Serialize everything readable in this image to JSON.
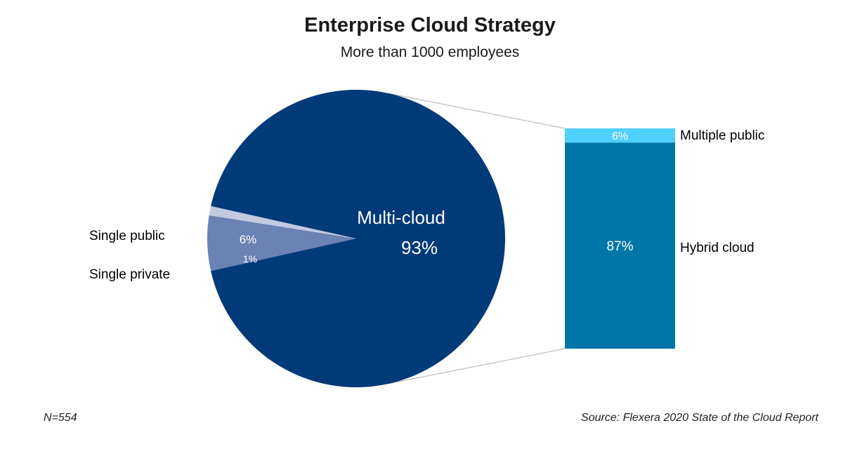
{
  "chart_data": {
    "type": "pie",
    "title": "Enterprise Cloud Strategy",
    "subtitle": "More than 1000 employees",
    "slices": [
      {
        "label": "Multi-cloud",
        "value": 93,
        "value_label": "93%",
        "color": "#003a78"
      },
      {
        "label": "Single public",
        "value": 6,
        "value_label": "6%",
        "color": "#6b82b5"
      },
      {
        "label": "Single private",
        "value": 1,
        "value_label": "1%",
        "color": "#c3cadf"
      }
    ],
    "breakdown": {
      "of": "Multi-cloud",
      "segments": [
        {
          "label": "Multiple public",
          "value": 6,
          "value_label": "6%",
          "color": "#4fd0ff"
        },
        {
          "label": "Hybrid cloud",
          "value": 87,
          "value_label": "87%",
          "color": "#0076a8"
        }
      ]
    },
    "legend_position": "none",
    "footnote_left": "N=554",
    "footnote_right": "Source: Flexera 2020 State of the Cloud Report"
  }
}
